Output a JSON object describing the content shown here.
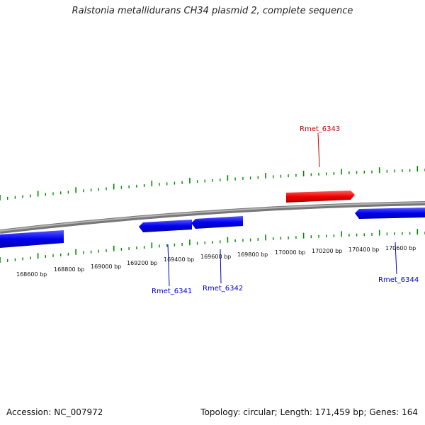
{
  "title": "Ralstonia metallidurans CH34 plasmid 2, complete sequence",
  "footer": {
    "accession": "Accession: NC_007972",
    "topology": "Topology: circular; Length: 171,459 bp; Genes: 164"
  },
  "scale_labels": [
    "168600 bp",
    "168800 bp",
    "169000 bp",
    "169200 bp",
    "169400 bp",
    "169600 bp",
    "169800 bp",
    "170000 bp",
    "170200 bp",
    "170400 bp",
    "170600 bp"
  ],
  "genes": [
    {
      "id": "Rmet_6341",
      "strand": "minus",
      "color": "#0000ee"
    },
    {
      "id": "Rmet_6342",
      "strand": "minus",
      "color": "#0000ee"
    },
    {
      "id": "Rmet_6343",
      "strand": "plus",
      "color": "#ee0000"
    },
    {
      "id": "Rmet_6344",
      "strand": "minus",
      "color": "#0000ee"
    }
  ],
  "colors": {
    "backbone": "#888888",
    "ticks": "#008800",
    "minus_strand": "#0000ee",
    "plus_strand": "#ee0000"
  }
}
